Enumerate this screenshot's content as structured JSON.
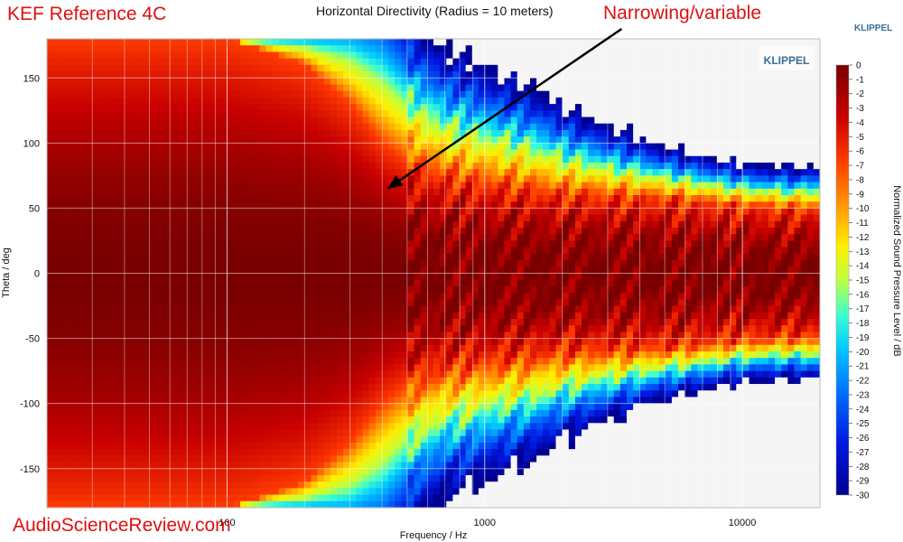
{
  "header": {
    "brand_title": "KEF Reference 4C",
    "annotation": "Narrowing/variable",
    "vendor": "KLIPPEL"
  },
  "watermark": "AudioScienceReview.com",
  "logo": {
    "text": "KLIPPEL"
  },
  "colors": {
    "brand_red": "#e01010",
    "klippel_blue": "#3a6e9a",
    "nan_fill": "#f5f5f5"
  },
  "chart_data": {
    "type": "heatmap",
    "title": "Horizontal Directivity (Radius = 10 meters)",
    "xlabel": "Frequency / Hz",
    "ylabel": "Theta / deg",
    "x_scale": "log",
    "xlim": [
      20,
      20000
    ],
    "ylim": [
      -180,
      180
    ],
    "x_tick_labels": [
      {
        "value": 100,
        "label": "100"
      },
      {
        "value": 1000,
        "label": "1000"
      },
      {
        "value": 10000,
        "label": "10000"
      }
    ],
    "y_ticks": [
      150,
      100,
      50,
      0,
      -50,
      -100,
      -150
    ],
    "grid": true,
    "colorbar": {
      "label": "Normalized Sound Pressure Level / dB",
      "min": -30,
      "max": 0,
      "ticks": [
        0,
        -1,
        -2,
        -3,
        -4,
        -5,
        -6,
        -7,
        -8,
        -9,
        -10,
        -11,
        -12,
        -13,
        -14,
        -15,
        -16,
        -17,
        -18,
        -19,
        -20,
        -21,
        -22,
        -23,
        -24,
        -25,
        -26,
        -27,
        -28,
        -29,
        -30
      ]
    },
    "annotation": {
      "text": "Narrowing/variable",
      "arrow_from": {
        "x": 3400,
        "theta": 190
      },
      "arrow_to": {
        "x": 420,
        "theta": 65
      }
    },
    "beamwidth_contours": {
      "description_freq_hz": [
        20,
        100,
        200,
        300,
        400,
        500,
        700,
        1000,
        1500,
        2000,
        3000,
        5000,
        7000,
        10000,
        15000,
        20000
      ],
      "minus6dB_halfwidth_deg": [
        180,
        180,
        160,
        130,
        100,
        85,
        75,
        70,
        65,
        62,
        60,
        58,
        55,
        52,
        50,
        50
      ],
      "minus20dB_halfwidth_deg": [
        180,
        180,
        180,
        180,
        170,
        150,
        130,
        120,
        110,
        100,
        90,
        80,
        75,
        70,
        68,
        68
      ]
    }
  }
}
